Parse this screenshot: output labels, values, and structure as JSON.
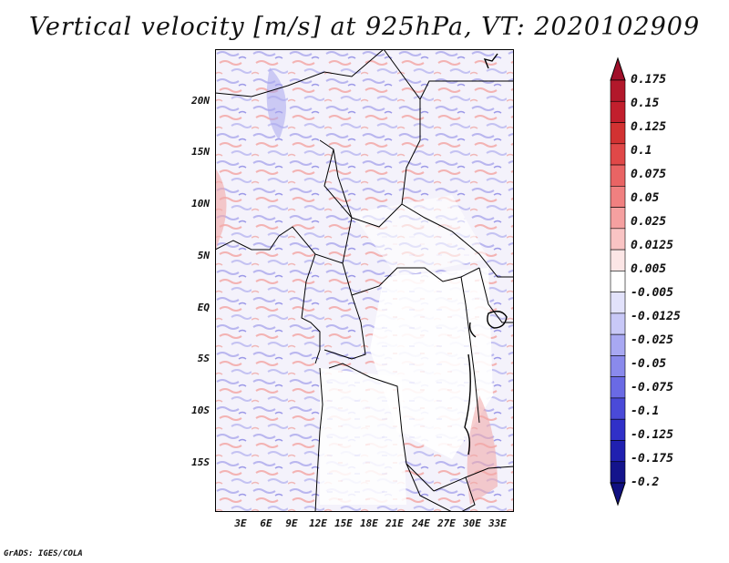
{
  "title": "Vertical velocity [m/s] at 925hPa, VT: 2020102909",
  "credit": "GrADS: IGES/COLA",
  "map": {
    "lat_labels": [
      "20N",
      "15N",
      "10N",
      "5N",
      "EQ",
      "5S",
      "10S",
      "15S"
    ],
    "lon_labels": [
      "3E",
      "6E",
      "9E",
      "12E",
      "15E",
      "18E",
      "21E",
      "24E",
      "27E",
      "30E",
      "33E"
    ]
  },
  "colorbar": {
    "labels": [
      "0.175",
      "0.15",
      "0.125",
      "0.1",
      "0.075",
      "0.05",
      "0.025",
      "0.0125",
      "0.005",
      "-0.005",
      "-0.0125",
      "-0.025",
      "-0.05",
      "-0.075",
      "-0.1",
      "-0.125",
      "-0.175",
      "-0.2"
    ],
    "colors": [
      "#b2182b",
      "#c21f2d",
      "#d23232",
      "#e04848",
      "#e96464",
      "#f08080",
      "#f5a0a0",
      "#f9c4c4",
      "#fce6e6",
      "#ffffff",
      "#e2e2fb",
      "#c8c8f7",
      "#a8a8f2",
      "#8a8aec",
      "#6a6ae4",
      "#4a4ad8",
      "#3030c8",
      "#2020b0",
      "#14148c"
    ],
    "upper_arrow_color": "#a0102a",
    "lower_arrow_color": "#101080"
  }
}
